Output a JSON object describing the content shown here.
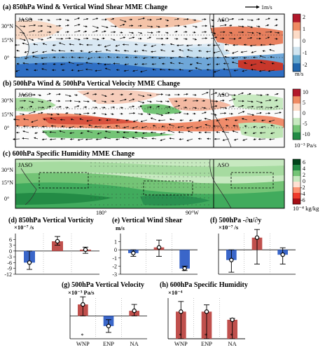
{
  "maps": [
    {
      "title": "(a) 850hPa Wind & Vertical Wind Shear MME Change",
      "season_left": "JASO",
      "season_right": "ASO",
      "ref_vector": "1m/s",
      "lat_labels": [
        "30°N",
        "15°N",
        "0°"
      ],
      "colorbar": {
        "ticks": [
          "2",
          "1",
          "0",
          "-1",
          "-2"
        ],
        "unit": "m/s",
        "colors": [
          "#b2182b",
          "#ef8a62",
          "#fddbc7",
          "#ffffff",
          "#d1e5f0",
          "#67a9cf",
          "#2166ac"
        ]
      }
    },
    {
      "title": "(b) 500hPa Wind & 500hPa Vertical Velocity MME Change",
      "season_left": "JASO",
      "season_right": "ASO",
      "lat_labels": [
        "30°N",
        "15°N",
        "0°"
      ],
      "colorbar": {
        "ticks": [
          "10",
          "5",
          "0",
          "-5",
          "-10"
        ],
        "unit": "10⁻³ Pa/s",
        "colors": [
          "#b2182b",
          "#ef8a62",
          "#fddbc7",
          "#ffffff",
          "#c7e9c0",
          "#74c476",
          "#238b45"
        ]
      }
    },
    {
      "title": "(c) 600hPa Specific Humidity MME Change",
      "season_left": "JASO",
      "season_right": "ASO",
      "lat_labels": [
        "30°N",
        "15°N",
        "0°"
      ],
      "lon_labels": [
        "180°",
        "90°W"
      ],
      "colorbar": {
        "ticks": [
          "6",
          "4",
          "2",
          "0",
          "-2",
          "-4",
          "-6"
        ],
        "unit": "10⁻⁴ kg/kg",
        "colors": [
          "#00441b",
          "#238b45",
          "#74c476",
          "#c7e9c0",
          "#fee0d2",
          "#fc9272",
          "#ef3b2c",
          "#a50f15"
        ]
      }
    }
  ],
  "chart_data": [
    {
      "type": "bar",
      "title": "(d) 850hPa Vertical Vorticity",
      "unit": "×10⁻⁷ /s",
      "categories": [
        "WNP",
        "ENP",
        "NA"
      ],
      "ylim": [
        -12,
        9
      ],
      "yticks": [
        -12,
        -9,
        -6,
        -3,
        0,
        3,
        6
      ],
      "values": [
        -6.0,
        5.0,
        0.7
      ],
      "err_low": [
        -9.5,
        3.0,
        -1.2
      ],
      "err_high": [
        0,
        7.5,
        2.0
      ],
      "bar_colors": [
        "#3a66c9",
        "#c0504d",
        "#c0504d"
      ],
      "significant": [
        false,
        false,
        false
      ]
    },
    {
      "type": "bar",
      "title": "(e) Vertical Wind Shear",
      "unit": "m/s",
      "categories": [
        "WNP",
        "ENP",
        "NA"
      ],
      "ylim": [
        -3,
        2
      ],
      "yticks": [
        -3,
        -2,
        -1,
        0,
        1
      ],
      "values": [
        -0.4,
        0.3,
        -2.3
      ],
      "err_low": [
        -0.8,
        -0.8,
        -2.55
      ],
      "err_high": [
        0,
        1.2,
        -2.0
      ],
      "bar_colors": [
        "#3a66c9",
        "#c0504d",
        "#3a66c9"
      ],
      "significant": [
        false,
        false,
        true
      ]
    },
    {
      "type": "bar",
      "title": "(f) 500hPa -∂u/∂y",
      "unit": "×10⁻⁷ /s",
      "categories": [
        "WNP",
        "ENP",
        "NA"
      ],
      "ylim": [
        -6,
        4
      ],
      "yticks": [],
      "values": [
        -2.5,
        3.0,
        -1.2
      ],
      "err_low": [
        -5.5,
        -3.5,
        -3.5
      ],
      "err_high": [
        0,
        5.0,
        0.5
      ],
      "bar_colors": [
        "#3a66c9",
        "#c0504d",
        "#3a66c9"
      ],
      "significant": [
        false,
        false,
        false
      ]
    },
    {
      "type": "bar",
      "title": "(g) 500hPa Vertical Velocity",
      "unit": "×10⁻³ Pa/s",
      "categories": [
        "WNP",
        "ENP",
        "NA"
      ],
      "ylim": [
        -9,
        7
      ],
      "yticks": [],
      "values": [
        4.5,
        -4.0,
        2.0
      ],
      "err_low": [
        0,
        -6.5,
        0
      ],
      "err_high": [
        7.5,
        -1.5,
        4.5
      ],
      "bar_colors": [
        "#c0504d",
        "#3a66c9",
        "#c0504d"
      ],
      "significant": [
        true,
        false,
        false
      ]
    },
    {
      "type": "bar",
      "title": "(h) 600hPa Specific Humidity",
      "unit": "×10⁻⁴",
      "categories": [
        "WNP",
        "ENP",
        "NA"
      ],
      "ylim": [
        0,
        6
      ],
      "yticks": [],
      "values": [
        4.0,
        4.0,
        2.8
      ],
      "err_low": [
        0,
        0,
        0
      ],
      "err_high": [
        5.5,
        5.0,
        3.0
      ],
      "bar_colors": [
        "#c0504d",
        "#c0504d",
        "#c0504d"
      ],
      "significant": [
        true,
        true,
        true
      ]
    }
  ]
}
